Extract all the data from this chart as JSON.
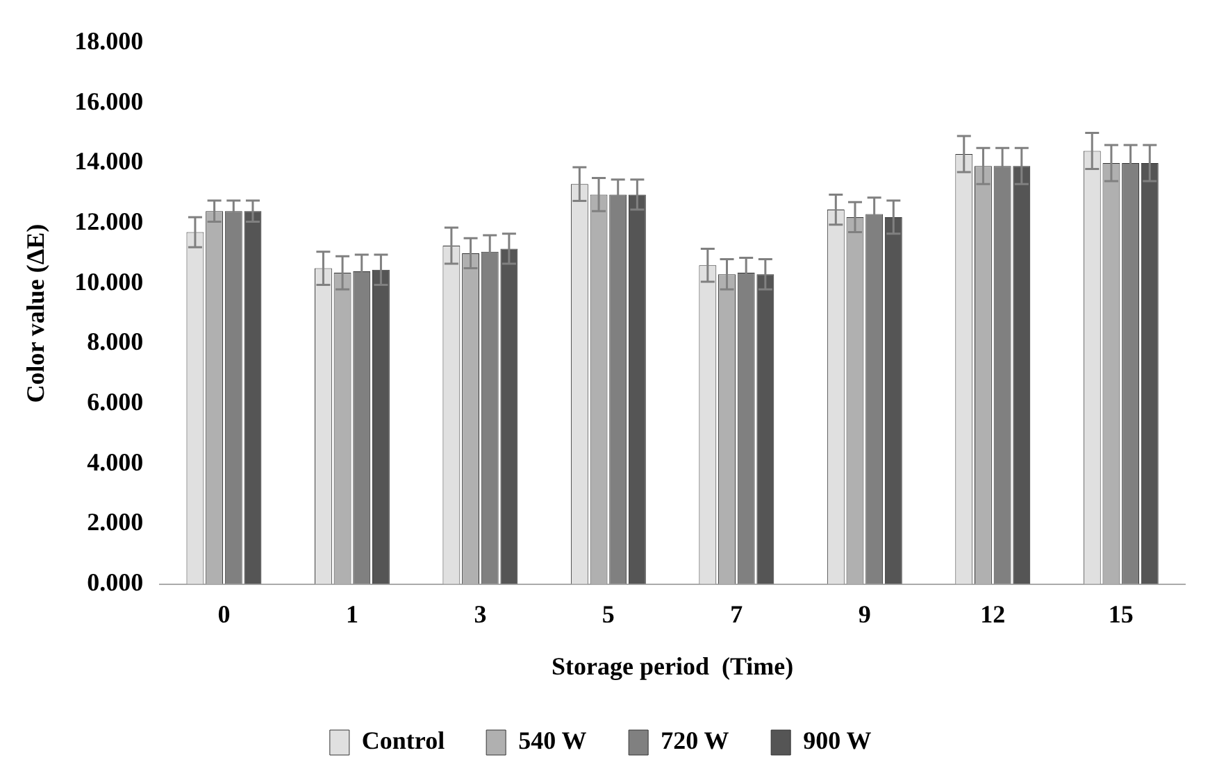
{
  "chart_data": {
    "type": "bar",
    "xlabel": "Storage period  (Time)",
    "ylabel": "Color value (ΔE)",
    "categories": [
      "0",
      "1",
      "3",
      "5",
      "7",
      "9",
      "12",
      "15"
    ],
    "series": [
      {
        "name": "Control",
        "color": "#e0e0e0",
        "values": [
          11.7,
          10.5,
          11.25,
          13.3,
          10.6,
          12.45,
          14.3,
          14.4
        ],
        "errors": [
          0.5,
          0.55,
          0.6,
          0.56,
          0.55,
          0.5,
          0.6,
          0.6
        ]
      },
      {
        "name": "540 W",
        "color": "#b0b0b0",
        "values": [
          12.4,
          10.35,
          11.0,
          12.95,
          10.3,
          12.2,
          13.9,
          14.0
        ],
        "errors": [
          0.35,
          0.55,
          0.5,
          0.55,
          0.5,
          0.5,
          0.6,
          0.6
        ]
      },
      {
        "name": "720 W",
        "color": "#808080",
        "values": [
          12.4,
          10.4,
          11.05,
          12.95,
          10.35,
          12.3,
          13.9,
          14.0
        ],
        "errors": [
          0.35,
          0.55,
          0.55,
          0.5,
          0.5,
          0.55,
          0.6,
          0.6
        ]
      },
      {
        "name": "900 W",
        "color": "#555555",
        "values": [
          12.4,
          10.45,
          11.15,
          12.95,
          10.3,
          12.2,
          13.9,
          14.0
        ],
        "errors": [
          0.35,
          0.5,
          0.5,
          0.5,
          0.5,
          0.55,
          0.6,
          0.6
        ]
      }
    ],
    "ylim": [
      0,
      18
    ],
    "yticks": [
      {
        "value": 0,
        "label": "0.000"
      },
      {
        "value": 2,
        "label": "2.000"
      },
      {
        "value": 4,
        "label": "4.000"
      },
      {
        "value": 6,
        "label": "6.000"
      },
      {
        "value": 8,
        "label": "8.000"
      },
      {
        "value": 10,
        "label": "10.000"
      },
      {
        "value": 12,
        "label": "12.000"
      },
      {
        "value": 14,
        "label": "14.000"
      },
      {
        "value": 16,
        "label": "16.000"
      },
      {
        "value": 18,
        "label": "18.000"
      }
    ],
    "grid": false,
    "legend": "bottom"
  }
}
